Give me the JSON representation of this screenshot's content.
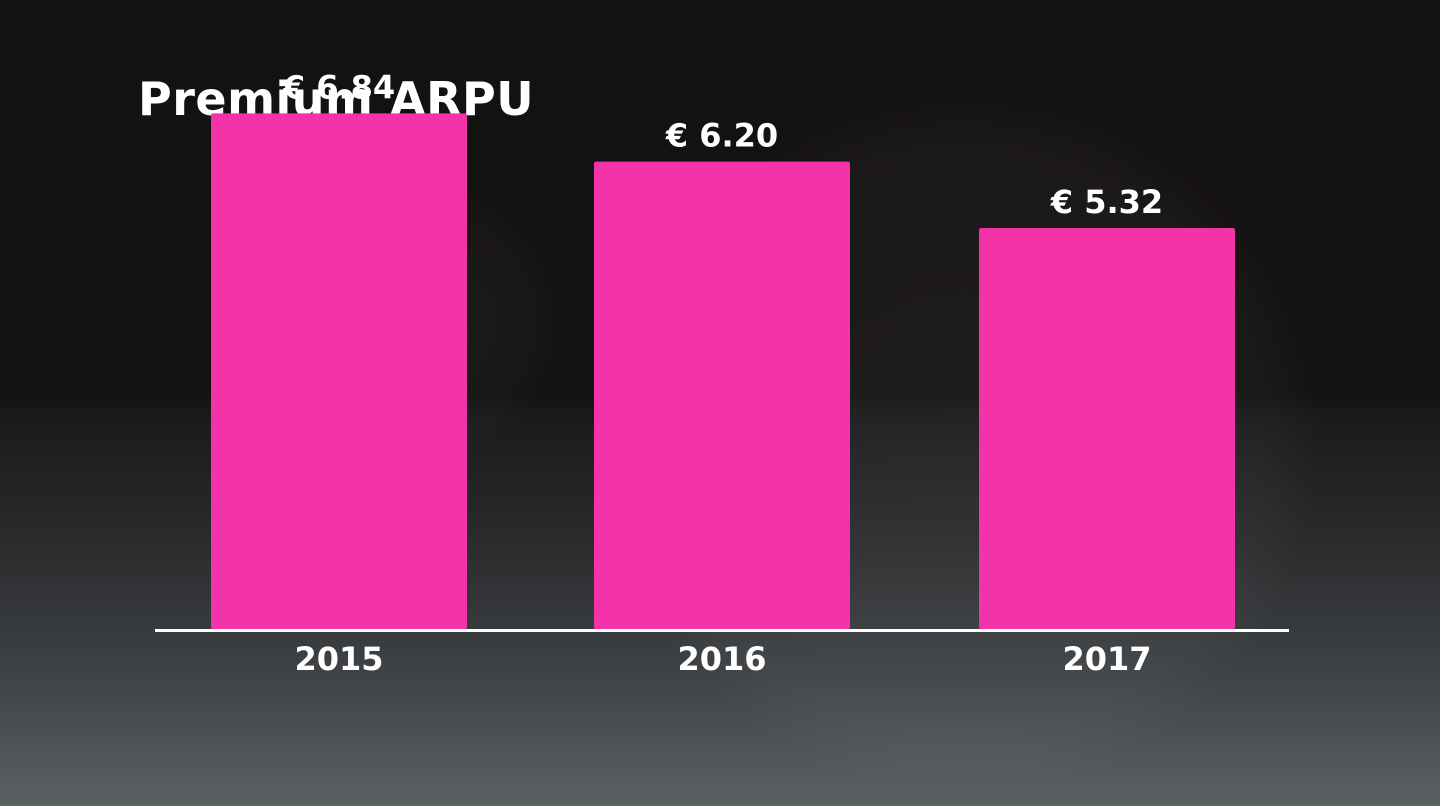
{
  "colors": {
    "bar": "#f234a8",
    "axis": "#ffffff",
    "text": "#ffffff"
  },
  "chart_data": {
    "type": "bar",
    "title": "Premium ARPU",
    "categories": [
      "2015",
      "2016",
      "2017"
    ],
    "values": [
      6.84,
      6.2,
      5.32
    ],
    "value_labels": [
      "€ 6.84",
      "€ 6.20",
      "€ 5.32"
    ],
    "ylim": [
      0,
      8.0
    ],
    "grid": false,
    "legend": "none",
    "xlabel": "",
    "ylabel": ""
  }
}
